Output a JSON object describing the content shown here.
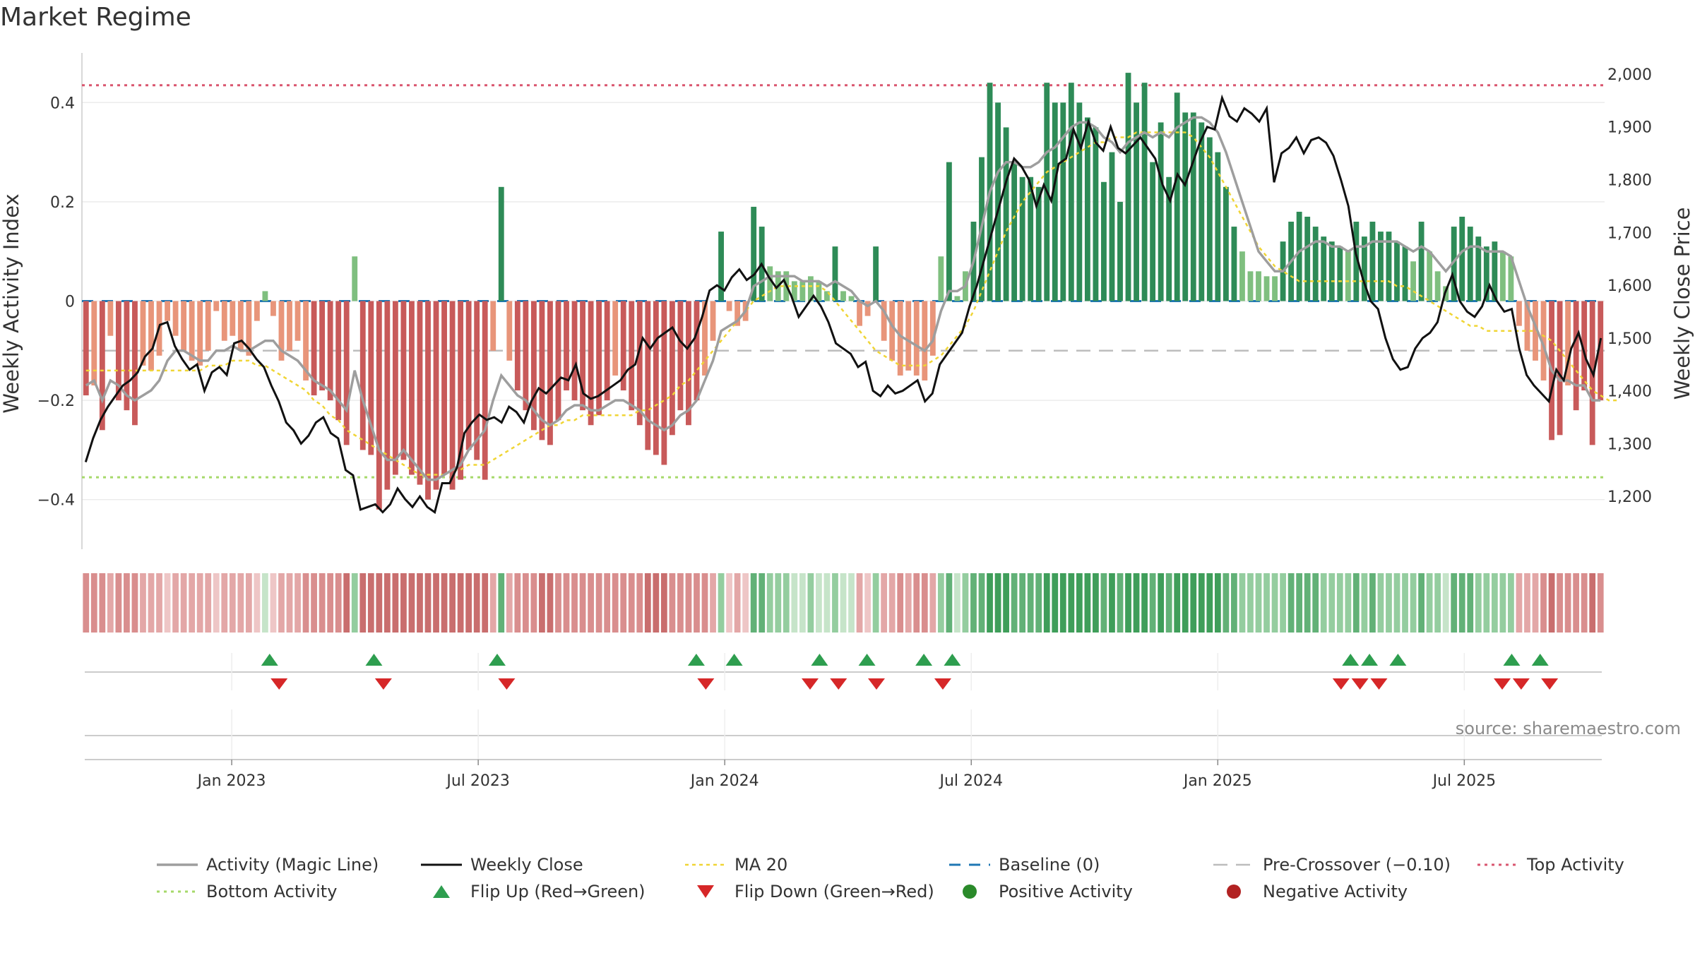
{
  "chart_data": {
    "type": "bar",
    "title": "Market Regime",
    "ylabel_left": "Weekly Activity Index",
    "ylabel_right": "Weekly Close Price",
    "source": "source: sharemaestro.com",
    "ylim_left": [
      -0.5,
      0.5
    ],
    "ylim_right": [
      1100,
      2040
    ],
    "yticks_left": [
      {
        "v": 0.4,
        "label": "0.4"
      },
      {
        "v": 0.2,
        "label": "0.2"
      },
      {
        "v": 0,
        "label": "0"
      },
      {
        "v": -0.2,
        "label": "−0.2"
      },
      {
        "v": -0.4,
        "label": "−0.4"
      }
    ],
    "yticks_right": [
      {
        "v": 2000,
        "label": "2,000"
      },
      {
        "v": 1900,
        "label": "1,900"
      },
      {
        "v": 1800,
        "label": "1,800"
      },
      {
        "v": 1700,
        "label": "1,700"
      },
      {
        "v": 1600,
        "label": "1,600"
      },
      {
        "v": 1500,
        "label": "1,500"
      },
      {
        "v": 1400,
        "label": "1,400"
      },
      {
        "v": 1300,
        "label": "1,300"
      },
      {
        "v": 1200,
        "label": "1,200"
      }
    ],
    "x_ticks": [
      {
        "week": 15,
        "label": "Jan 2023"
      },
      {
        "week": 41,
        "label": "Jul 2023"
      },
      {
        "week": 67,
        "label": "Jan 2024"
      },
      {
        "week": 93,
        "label": "Jul 2024"
      },
      {
        "week": 119,
        "label": "Jan 2025"
      },
      {
        "week": 145,
        "label": "Jul 2025"
      }
    ],
    "top_activity": 0.435,
    "bottom_activity": -0.355,
    "pre_crossover": -0.1,
    "baseline": 0,
    "colors": {
      "pos_strong": "#2e8b57",
      "pos_light": "#7fbf7f",
      "neg_strong": "#c85a5a",
      "neg_light": "#e8957a",
      "magic_line": "#9e9e9e",
      "close": "#111111",
      "ma20": "#f0d535",
      "baseline": "#1f77b4",
      "pre_crossover": "#bdbdbd",
      "top": "#d9566f",
      "bottom": "#a6d96a",
      "flip_up": "#2e9e4f",
      "flip_down": "#d62728"
    },
    "activity": [
      -0.19,
      -0.17,
      -0.26,
      -0.07,
      -0.2,
      -0.22,
      -0.25,
      -0.13,
      -0.14,
      -0.11,
      -0.04,
      -0.07,
      -0.1,
      -0.12,
      -0.13,
      -0.1,
      -0.02,
      -0.08,
      -0.07,
      -0.1,
      -0.11,
      -0.04,
      0.02,
      -0.03,
      -0.12,
      -0.1,
      -0.08,
      -0.16,
      -0.19,
      -0.18,
      -0.2,
      -0.24,
      -0.29,
      0.09,
      -0.3,
      -0.31,
      -0.42,
      -0.38,
      -0.35,
      -0.32,
      -0.35,
      -0.37,
      -0.4,
      -0.38,
      -0.35,
      -0.38,
      -0.36,
      -0.3,
      -0.32,
      -0.36,
      -0.1,
      0.23,
      -0.12,
      -0.18,
      -0.22,
      -0.26,
      -0.28,
      -0.29,
      -0.24,
      -0.18,
      -0.2,
      -0.22,
      -0.25,
      -0.23,
      -0.2,
      -0.15,
      -0.18,
      -0.22,
      -0.25,
      -0.3,
      -0.31,
      -0.33,
      -0.27,
      -0.22,
      -0.25,
      -0.2,
      -0.15,
      -0.08,
      0.14,
      -0.02,
      -0.05,
      -0.04,
      0.19,
      0.15,
      0.07,
      0.06,
      0.06,
      0.04,
      0.04,
      0.05,
      0.04,
      0.02,
      0.11,
      0.02,
      0.01,
      -0.05,
      -0.03,
      0.11,
      -0.08,
      -0.12,
      -0.15,
      -0.14,
      -0.15,
      -0.16,
      -0.11,
      0.09,
      0.28,
      0.01,
      0.06,
      0.16,
      0.29,
      0.44,
      0.4,
      0.35,
      0.28,
      0.25,
      0.25,
      0.23,
      0.44,
      0.4,
      0.4,
      0.44,
      0.4,
      0.37,
      0.35,
      0.24,
      0.3,
      0.2,
      0.46,
      0.4,
      0.44,
      0.28,
      0.36,
      0.25,
      0.42,
      0.38,
      0.38,
      0.36,
      0.33,
      0.3,
      0.23,
      0.15,
      0.1,
      0.06,
      0.06,
      0.05,
      0.05,
      0.12,
      0.16,
      0.18,
      0.17,
      0.15,
      0.13,
      0.12,
      0.11,
      0.1,
      0.16,
      0.13,
      0.16,
      0.14,
      0.14,
      0.12,
      0.11,
      0.08,
      0.16,
      0.1,
      0.06,
      0.03,
      0.15,
      0.17,
      0.15,
      0.13,
      0.11,
      0.12,
      0.1,
      0.09,
      -0.05,
      -0.1,
      -0.12,
      -0.16,
      -0.28,
      -0.27,
      -0.17,
      -0.22,
      -0.18,
      -0.29,
      -0.2
    ],
    "magic_line": [
      -0.17,
      -0.16,
      -0.2,
      -0.16,
      -0.17,
      -0.19,
      -0.2,
      -0.19,
      -0.18,
      -0.16,
      -0.12,
      -0.1,
      -0.1,
      -0.11,
      -0.12,
      -0.12,
      -0.1,
      -0.1,
      -0.09,
      -0.1,
      -0.1,
      -0.09,
      -0.08,
      -0.08,
      -0.1,
      -0.11,
      -0.12,
      -0.14,
      -0.16,
      -0.17,
      -0.18,
      -0.2,
      -0.22,
      -0.14,
      -0.2,
      -0.25,
      -0.3,
      -0.32,
      -0.32,
      -0.3,
      -0.32,
      -0.34,
      -0.36,
      -0.36,
      -0.35,
      -0.34,
      -0.33,
      -0.3,
      -0.28,
      -0.26,
      -0.2,
      -0.15,
      -0.17,
      -0.19,
      -0.2,
      -0.22,
      -0.24,
      -0.25,
      -0.24,
      -0.22,
      -0.21,
      -0.21,
      -0.22,
      -0.22,
      -0.21,
      -0.2,
      -0.2,
      -0.21,
      -0.22,
      -0.24,
      -0.25,
      -0.26,
      -0.25,
      -0.23,
      -0.22,
      -0.2,
      -0.16,
      -0.12,
      -0.06,
      -0.05,
      -0.04,
      -0.02,
      0.03,
      0.04,
      0.05,
      0.05,
      0.05,
      0.05,
      0.04,
      0.04,
      0.04,
      0.03,
      0.04,
      0.03,
      0.02,
      0.0,
      -0.01,
      0.0,
      -0.02,
      -0.05,
      -0.07,
      -0.08,
      -0.09,
      -0.1,
      -0.08,
      -0.02,
      0.02,
      0.02,
      0.03,
      0.08,
      0.15,
      0.22,
      0.26,
      0.28,
      0.28,
      0.27,
      0.27,
      0.28,
      0.3,
      0.31,
      0.33,
      0.35,
      0.36,
      0.36,
      0.35,
      0.33,
      0.32,
      0.3,
      0.32,
      0.33,
      0.34,
      0.33,
      0.34,
      0.33,
      0.35,
      0.36,
      0.37,
      0.37,
      0.36,
      0.34,
      0.3,
      0.25,
      0.2,
      0.15,
      0.1,
      0.08,
      0.06,
      0.06,
      0.08,
      0.1,
      0.11,
      0.12,
      0.12,
      0.11,
      0.11,
      0.1,
      0.11,
      0.11,
      0.12,
      0.12,
      0.12,
      0.12,
      0.11,
      0.1,
      0.11,
      0.1,
      0.08,
      0.06,
      0.08,
      0.1,
      0.11,
      0.11,
      0.1,
      0.1,
      0.1,
      0.09,
      0.04,
      -0.01,
      -0.05,
      -0.09,
      -0.14,
      -0.16,
      -0.16,
      -0.17,
      -0.17,
      -0.2,
      -0.2
    ],
    "ma20": [
      -0.14,
      -0.14,
      -0.14,
      -0.14,
      -0.14,
      -0.14,
      -0.14,
      -0.14,
      -0.14,
      -0.14,
      -0.14,
      -0.14,
      -0.14,
      -0.14,
      -0.14,
      -0.13,
      -0.13,
      -0.13,
      -0.12,
      -0.12,
      -0.12,
      -0.13,
      -0.13,
      -0.14,
      -0.15,
      -0.16,
      -0.17,
      -0.18,
      -0.2,
      -0.21,
      -0.23,
      -0.24,
      -0.26,
      -0.27,
      -0.28,
      -0.29,
      -0.3,
      -0.31,
      -0.32,
      -0.33,
      -0.34,
      -0.35,
      -0.35,
      -0.35,
      -0.35,
      -0.34,
      -0.34,
      -0.33,
      -0.33,
      -0.33,
      -0.32,
      -0.31,
      -0.3,
      -0.29,
      -0.28,
      -0.27,
      -0.26,
      -0.25,
      -0.25,
      -0.24,
      -0.24,
      -0.23,
      -0.23,
      -0.23,
      -0.23,
      -0.23,
      -0.23,
      -0.23,
      -0.22,
      -0.22,
      -0.21,
      -0.2,
      -0.19,
      -0.17,
      -0.16,
      -0.14,
      -0.12,
      -0.1,
      -0.08,
      -0.06,
      -0.04,
      -0.02,
      0.0,
      0.01,
      0.02,
      0.03,
      0.03,
      0.03,
      0.03,
      0.03,
      0.03,
      0.02,
      0.0,
      -0.02,
      -0.04,
      -0.06,
      -0.08,
      -0.1,
      -0.11,
      -0.12,
      -0.13,
      -0.13,
      -0.13,
      -0.13,
      -0.12,
      -0.11,
      -0.09,
      -0.07,
      -0.05,
      -0.02,
      0.02,
      0.06,
      0.1,
      0.14,
      0.17,
      0.2,
      0.22,
      0.24,
      0.26,
      0.27,
      0.28,
      0.29,
      0.3,
      0.31,
      0.32,
      0.32,
      0.33,
      0.33,
      0.33,
      0.34,
      0.34,
      0.34,
      0.34,
      0.34,
      0.34,
      0.34,
      0.33,
      0.31,
      0.29,
      0.26,
      0.23,
      0.2,
      0.17,
      0.14,
      0.11,
      0.09,
      0.07,
      0.06,
      0.05,
      0.04,
      0.04,
      0.04,
      0.04,
      0.04,
      0.04,
      0.04,
      0.04,
      0.04,
      0.04,
      0.04,
      0.04,
      0.03,
      0.03,
      0.02,
      0.01,
      0.0,
      -0.01,
      -0.02,
      -0.03,
      -0.04,
      -0.05,
      -0.05,
      -0.06,
      -0.06,
      -0.06,
      -0.06,
      -0.06,
      -0.06,
      -0.06,
      -0.07,
      -0.08,
      -0.1,
      -0.12,
      -0.14,
      -0.16,
      -0.18,
      -0.19,
      -0.2,
      -0.2
    ],
    "close": [
      1265,
      1310,
      1345,
      1370,
      1390,
      1410,
      1420,
      1435,
      1465,
      1480,
      1525,
      1530,
      1485,
      1460,
      1440,
      1450,
      1400,
      1435,
      1445,
      1430,
      1490,
      1495,
      1480,
      1460,
      1445,
      1410,
      1380,
      1340,
      1325,
      1300,
      1315,
      1340,
      1350,
      1320,
      1310,
      1250,
      1240,
      1175,
      1180,
      1185,
      1170,
      1185,
      1215,
      1195,
      1180,
      1200,
      1180,
      1170,
      1225,
      1225,
      1255,
      1320,
      1340,
      1355,
      1345,
      1350,
      1340,
      1370,
      1360,
      1340,
      1380,
      1405,
      1395,
      1410,
      1425,
      1420,
      1450,
      1395,
      1385,
      1390,
      1400,
      1410,
      1420,
      1440,
      1450,
      1500,
      1480,
      1500,
      1510,
      1520,
      1495,
      1480,
      1500,
      1540,
      1590,
      1600,
      1590,
      1615,
      1630,
      1610,
      1620,
      1640,
      1615,
      1595,
      1610,
      1580,
      1540,
      1560,
      1580,
      1560,
      1530,
      1490,
      1480,
      1470,
      1445,
      1455,
      1400,
      1390,
      1410,
      1395,
      1400,
      1410,
      1420,
      1380,
      1395,
      1450,
      1470,
      1490,
      1510,
      1560,
      1600,
      1650,
      1700,
      1750,
      1800,
      1840,
      1825,
      1800,
      1750,
      1790,
      1760,
      1830,
      1840,
      1895,
      1860,
      1910,
      1870,
      1855,
      1900,
      1860,
      1850,
      1865,
      1880,
      1860,
      1840,
      1790,
      1760,
      1810,
      1790,
      1830,
      1870,
      1900,
      1895,
      1955,
      1920,
      1910,
      1935,
      1925,
      1910,
      1935,
      1795,
      1850,
      1860,
      1880,
      1850,
      1875,
      1880,
      1870,
      1845,
      1800,
      1750,
      1660,
      1610,
      1570,
      1555,
      1500,
      1460,
      1440,
      1445,
      1480,
      1500,
      1510,
      1530,
      1585,
      1620,
      1570,
      1550,
      1540,
      1560,
      1600,
      1570,
      1550,
      1555,
      1480,
      1430,
      1410,
      1395,
      1380,
      1440,
      1420,
      1480,
      1510,
      1460,
      1430,
      1500
    ]
  },
  "flips_up_weeks": [
    19,
    30,
    43,
    64,
    68,
    77,
    82,
    88,
    91,
    133,
    135,
    138,
    150,
    153
  ],
  "flips_down_weeks": [
    20,
    31,
    44,
    65,
    76,
    79,
    83,
    90,
    132,
    134,
    136,
    149,
    151,
    154
  ],
  "legend": [
    {
      "key": "magic_line",
      "label": "Activity (Magic Line)"
    },
    {
      "key": "close",
      "label": "Weekly Close"
    },
    {
      "key": "ma20",
      "label": "MA 20"
    },
    {
      "key": "baseline",
      "label": "Baseline (0)"
    },
    {
      "key": "pre_crossover",
      "label": "Pre-Crossover (−0.10)"
    },
    {
      "key": "top",
      "label": "Top Activity"
    },
    {
      "key": "bottom",
      "label": "Bottom Activity"
    },
    {
      "key": "flip_up",
      "label": "Flip Up (Red→Green)"
    },
    {
      "key": "flip_down",
      "label": "Flip Down (Green→Red)"
    },
    {
      "key": "positive",
      "label": "Positive Activity"
    },
    {
      "key": "negative",
      "label": "Negative Activity"
    }
  ]
}
